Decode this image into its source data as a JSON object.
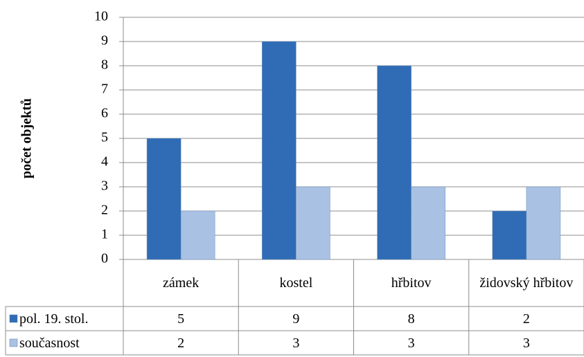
{
  "chart_data": {
    "type": "bar",
    "y_label": "počet objektů",
    "categories": [
      "zámek",
      "kostel",
      "hřbitov",
      "židovský hřbitov"
    ],
    "series": [
      {
        "name": "pol. 19. stol.",
        "color": "#2f6cb5",
        "values": [
          5,
          9,
          8,
          2
        ]
      },
      {
        "name": "současnost",
        "color": "#a9c1e3",
        "values": [
          2,
          3,
          3,
          3
        ]
      }
    ],
    "ylim": [
      0,
      10
    ],
    "yticks": [
      0,
      1,
      2,
      3,
      4,
      5,
      6,
      7,
      8,
      9,
      10
    ],
    "grid": true,
    "data_table": true
  }
}
